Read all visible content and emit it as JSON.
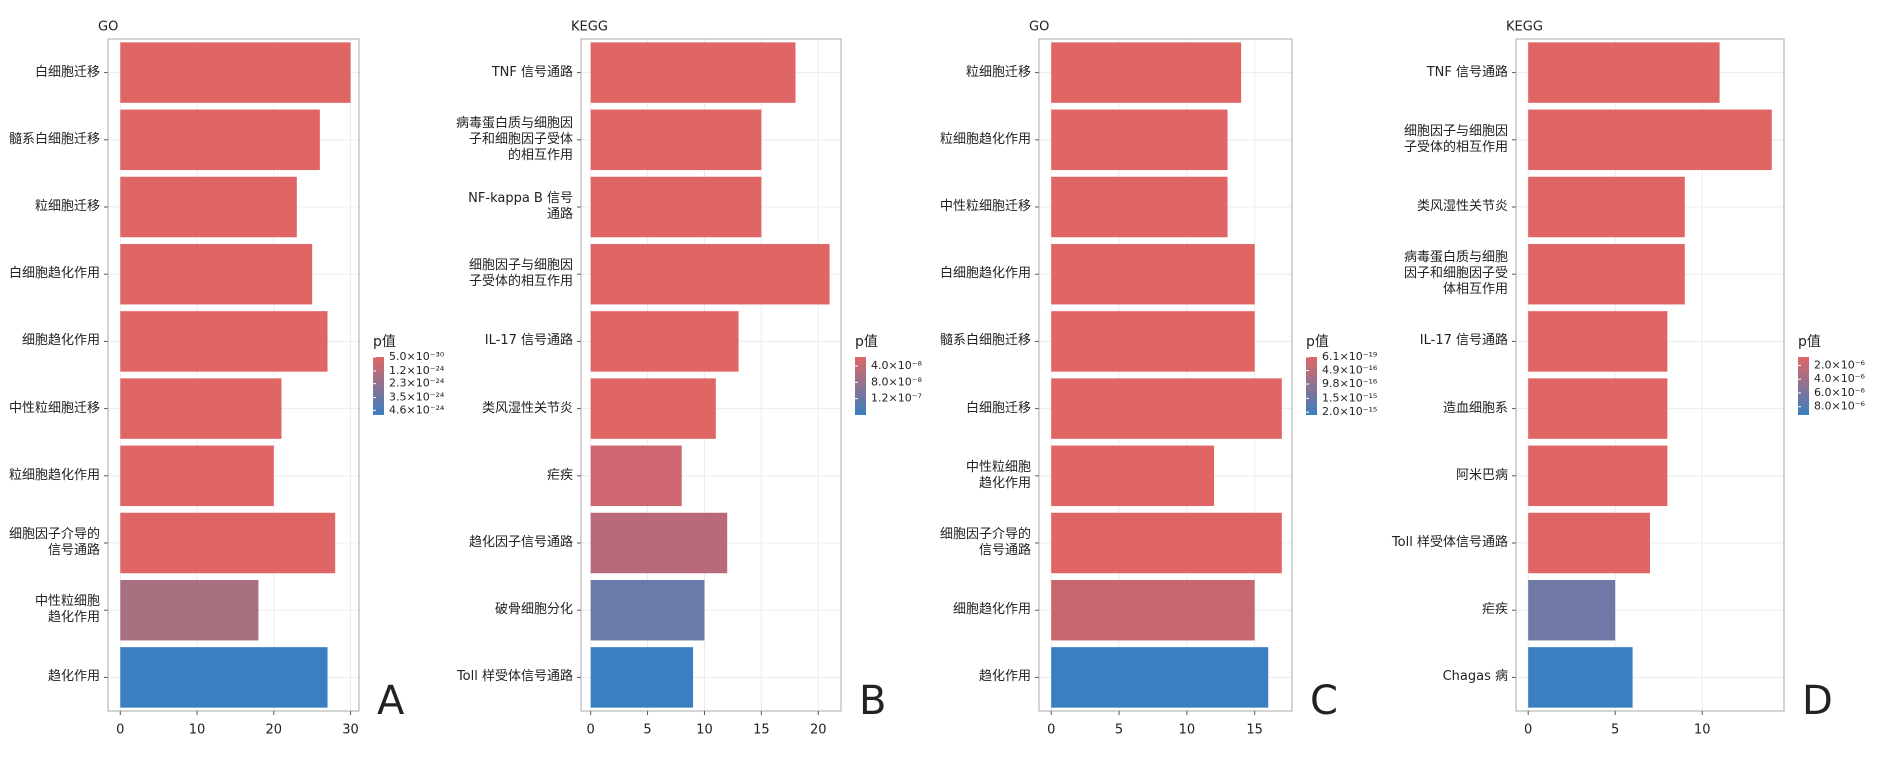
{
  "chart_data": [
    {
      "type": "bar",
      "orientation": "horizontal",
      "title": "GO",
      "panel_label": "A",
      "categories": [
        "白细胞迁移",
        "髓系白细胞迁移",
        "粒细胞迁移",
        "白细胞趋化作用",
        "细胞趋化作用",
        "中性粒细胞迁移",
        "粒细胞趋化作用",
        "细胞因子介导的\n信号通路",
        "中性粒细胞\n趋化作用",
        "趋化作用"
      ],
      "values": [
        30,
        26,
        23,
        25,
        27,
        21,
        20,
        28,
        18,
        27
      ],
      "colors": [
        "#e06666",
        "#e06666",
        "#e06666",
        "#e06666",
        "#e06666",
        "#e06666",
        "#e06666",
        "#e06666",
        "#a9717f",
        "#3a7fbf"
      ],
      "xlim": [
        -1.6,
        31.1
      ],
      "xticks": [
        0,
        10,
        20,
        30
      ],
      "grid": true,
      "legend_title": "p值",
      "colorbar_colors": [
        "#e06666",
        "#3a7fbf"
      ],
      "clim": [
        0,
        5e-24
      ],
      "colorbar_ticks": [
        {
          "value": 5e-30,
          "label": "5.0×10⁻³⁰"
        },
        {
          "value": 1.2e-24,
          "label": "1.2×10⁻²⁴"
        },
        {
          "value": 2.3e-24,
          "label": "2.3×10⁻²⁴"
        },
        {
          "value": 3.5e-24,
          "label": "3.5×10⁻²⁴"
        },
        {
          "value": 4.6e-24,
          "label": "4.6×10⁻²⁴"
        }
      ]
    },
    {
      "type": "bar",
      "orientation": "horizontal",
      "title": "KEGG",
      "panel_label": "B",
      "categories": [
        "TNF 信号通路",
        "病毒蛋白质与细胞因\n子和细胞因子受体\n的相互作用",
        "NF-kappa B 信号\n通路",
        "细胞因子与细胞因\n子受体的相互作用",
        "IL-17 信号通路",
        "类风湿性关节炎",
        "疟疾",
        "趋化因子信号通路",
        "破骨细胞分化",
        "Toll 样受体信号通路"
      ],
      "values": [
        18,
        15,
        15,
        21,
        13,
        11,
        8,
        12,
        10,
        9
      ],
      "colors": [
        "#e06666",
        "#e06666",
        "#e06666",
        "#e06666",
        "#e06666",
        "#e06666",
        "#cd6670",
        "#b86a7a",
        "#6a7aaa",
        "#3a7fbf"
      ],
      "xlim": [
        -0.85,
        22
      ],
      "xticks": [
        0,
        5,
        10,
        15,
        20
      ],
      "grid": true,
      "legend_title": "p值",
      "colorbar_colors": [
        "#e06666",
        "#3a7fbf"
      ],
      "clim": [
        1.8e-08,
        1.6e-07
      ],
      "colorbar_ticks": [
        {
          "value": 4e-08,
          "label": "4.0×10⁻⁸"
        },
        {
          "value": 8e-08,
          "label": "8.0×10⁻⁸"
        },
        {
          "value": 1.2e-07,
          "label": "1.2×10⁻⁷"
        }
      ]
    },
    {
      "type": "bar",
      "orientation": "horizontal",
      "title": "GO",
      "panel_label": "C",
      "categories": [
        "粒细胞迁移",
        "粒细胞趋化作用",
        "中性粒细胞迁移",
        "白细胞趋化作用",
        "髓系白细胞迁移",
        "白细胞迁移",
        "中性粒细胞\n趋化作用",
        "细胞因子介导的\n信号通路",
        "细胞趋化作用",
        "趋化作用"
      ],
      "values": [
        14,
        13,
        13,
        15,
        15,
        17,
        12,
        17,
        15,
        16
      ],
      "colors": [
        "#e06666",
        "#e06666",
        "#e06666",
        "#e06666",
        "#e06666",
        "#e06666",
        "#e06666",
        "#e06666",
        "#c9676f",
        "#3a7fbf"
      ],
      "xlim": [
        -0.9,
        17.75
      ],
      "xticks": [
        0,
        5,
        10,
        15
      ],
      "grid": true,
      "legend_title": "p值",
      "colorbar_colors": [
        "#e06666",
        "#3a7fbf"
      ],
      "clim": [
        0,
        2.1e-15
      ],
      "colorbar_ticks": [
        {
          "value": 6.1e-19,
          "label": "6.1×10⁻¹⁹"
        },
        {
          "value": 4.9e-16,
          "label": "4.9×10⁻¹⁶"
        },
        {
          "value": 9.8e-16,
          "label": "9.8×10⁻¹⁶"
        },
        {
          "value": 1.5e-15,
          "label": "1.5×10⁻¹⁵"
        },
        {
          "value": 2e-15,
          "label": "2.0×10⁻¹⁵"
        }
      ]
    },
    {
      "type": "bar",
      "orientation": "horizontal",
      "title": "KEGG",
      "panel_label": "D",
      "categories": [
        "TNF 信号通路",
        "细胞因子与细胞因\n子受体的相互作用",
        "类风湿性关节炎",
        "病毒蛋白质与细胞\n因子和细胞因子受\n体相互作用",
        "IL-17 信号通路",
        "造血细胞系",
        "阿米巴病",
        "Toll 样受体信号通路",
        "疟疾",
        "Chagas 病"
      ],
      "values": [
        11,
        14,
        9,
        9,
        8,
        8,
        8,
        7,
        5,
        6
      ],
      "colors": [
        "#e06666",
        "#e06666",
        "#e06666",
        "#e06666",
        "#e06666",
        "#e06666",
        "#e06666",
        "#e06666",
        "#7079a6",
        "#3a7fbf"
      ],
      "xlim": [
        -0.7,
        14.7
      ],
      "xticks": [
        0,
        5,
        10
      ],
      "grid": true,
      "legend_title": "p值",
      "colorbar_colors": [
        "#e06666",
        "#3a7fbf"
      ],
      "clim": [
        7.8e-07,
        9.2e-06
      ],
      "colorbar_ticks": [
        {
          "value": 2e-06,
          "label": "2.0×10⁻⁶"
        },
        {
          "value": 4e-06,
          "label": "4.0×10⁻⁶"
        },
        {
          "value": 6e-06,
          "label": "6.0×10⁻⁶"
        },
        {
          "value": 8e-06,
          "label": "8.0×10⁻⁶"
        }
      ]
    }
  ]
}
